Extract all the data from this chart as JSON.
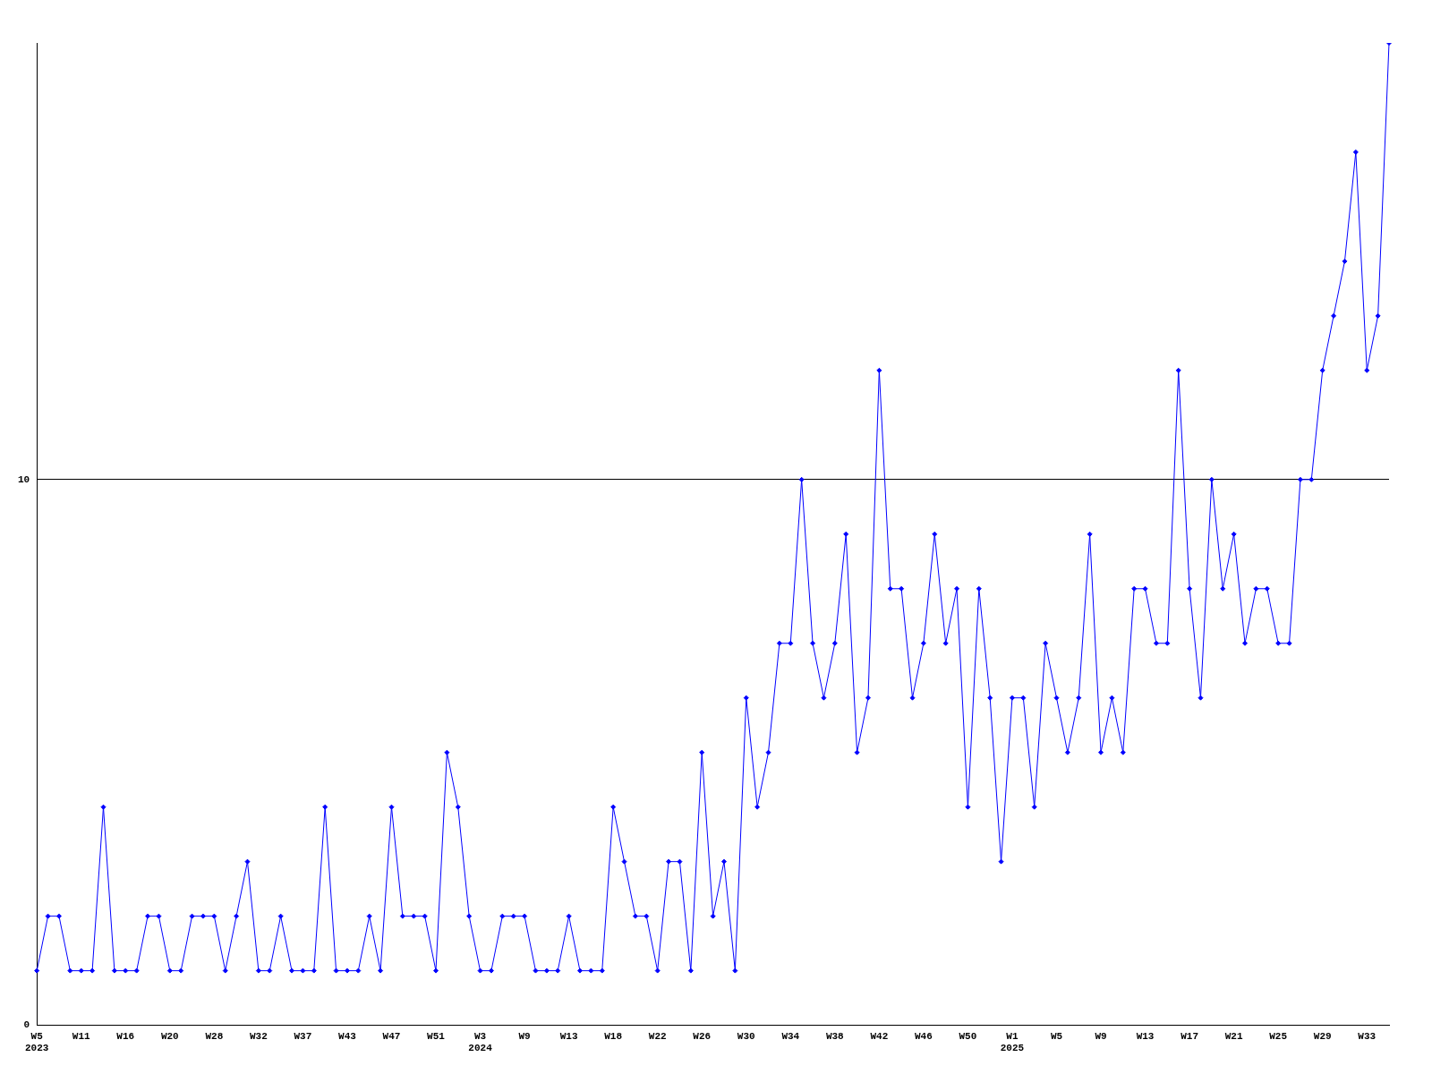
{
  "chart_data": {
    "type": "line",
    "categories": [
      "W5\n2023",
      null,
      null,
      null,
      "W11",
      null,
      null,
      null,
      "W16",
      null,
      null,
      null,
      "W20",
      null,
      null,
      null,
      "W28",
      null,
      null,
      null,
      "W32",
      null,
      null,
      null,
      "W37",
      null,
      null,
      null,
      "W43",
      null,
      null,
      null,
      "W47",
      null,
      null,
      null,
      "W51",
      null,
      null,
      null,
      "W3\n2024",
      null,
      null,
      null,
      "W9",
      null,
      null,
      null,
      "W13",
      null,
      null,
      null,
      "W18",
      null,
      null,
      null,
      "W22",
      null,
      null,
      null,
      "W26",
      null,
      null,
      null,
      "W30",
      null,
      null,
      null,
      "W34",
      null,
      null,
      null,
      "W38",
      null,
      null,
      null,
      "W42",
      null,
      null,
      null,
      "W46",
      null,
      null,
      null,
      "W50",
      null,
      null,
      null,
      "W1\n2025",
      null,
      null,
      null,
      "W5",
      null,
      null,
      null,
      "W9",
      null,
      null,
      null,
      "W13",
      null,
      null,
      null,
      "W17",
      null,
      null,
      null,
      "W21",
      null,
      null,
      null,
      "W25",
      null,
      null,
      null,
      "W29",
      null,
      null,
      null,
      "W33",
      null,
      null
    ],
    "series": [
      {
        "color": "#0000ff",
        "values": [
          1,
          2,
          2,
          1,
          1,
          1,
          4,
          1,
          1,
          1,
          2,
          2,
          1,
          1,
          2,
          2,
          2,
          1,
          2,
          3,
          1,
          1,
          2,
          1,
          1,
          1,
          4,
          1,
          1,
          1,
          2,
          1,
          4,
          2,
          2,
          2,
          1,
          5,
          4,
          2,
          1,
          1,
          2,
          2,
          2,
          1,
          1,
          1,
          2,
          1,
          1,
          1,
          4,
          3,
          2,
          2,
          1,
          3,
          3,
          1,
          5,
          2,
          3,
          1,
          6,
          4,
          5,
          7,
          7,
          10,
          7,
          6,
          7,
          9,
          5,
          6,
          12,
          8,
          8,
          6,
          7,
          9,
          7,
          8,
          4,
          8,
          6,
          3,
          6,
          6,
          4,
          7,
          6,
          5,
          6,
          9,
          5,
          6,
          5,
          8,
          8,
          7,
          7,
          12,
          8,
          6,
          10,
          8,
          9,
          7,
          8,
          8,
          7,
          7,
          10,
          10,
          12,
          13,
          14,
          16,
          12,
          13,
          18
        ]
      }
    ],
    "ylim": [
      0,
      18
    ],
    "yticks": [
      0,
      10
    ],
    "grid": "y",
    "legend": false,
    "marker": "diamond",
    "line_style": "solid"
  }
}
